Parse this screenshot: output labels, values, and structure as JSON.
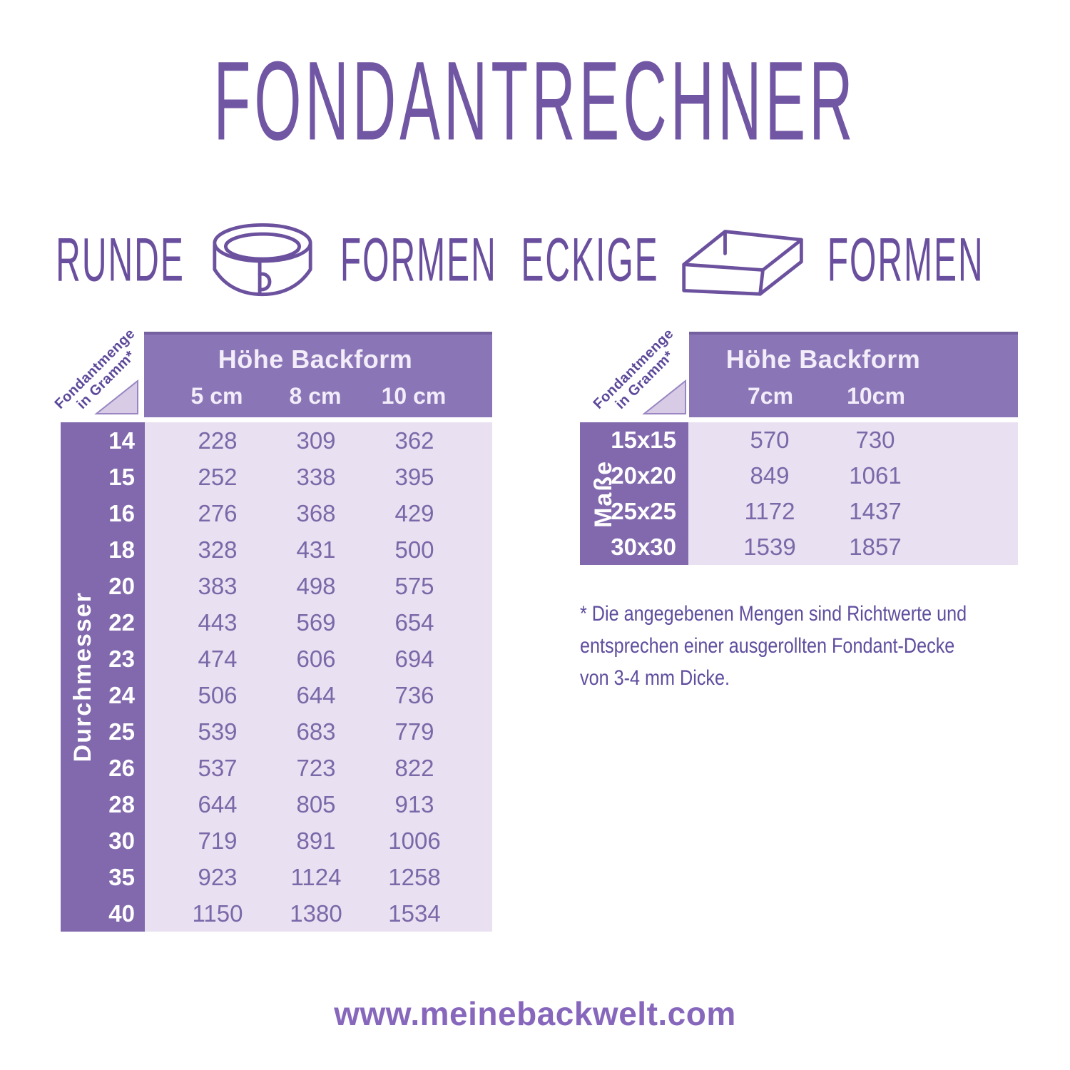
{
  "title": "Fondantrechner",
  "headings": {
    "round": {
      "left": "Runde",
      "right": "Formen",
      "icon": "round-springform-pan-icon"
    },
    "square": {
      "left": "Eckige",
      "right": "Formen",
      "icon": "square-baking-frame-icon"
    }
  },
  "round_table": {
    "corner_label_line1": "Fondantmenge",
    "corner_label_line2": "in Gramm*",
    "header": "Höhe Backform",
    "columns": [
      "5 cm",
      "8 cm",
      "10 cm"
    ],
    "axis_label": "Durchmesser",
    "rows": [
      {
        "label": "14",
        "values": [
          "228",
          "309",
          "362"
        ]
      },
      {
        "label": "15",
        "values": [
          "252",
          "338",
          "395"
        ]
      },
      {
        "label": "16",
        "values": [
          "276",
          "368",
          "429"
        ]
      },
      {
        "label": "18",
        "values": [
          "328",
          "431",
          "500"
        ]
      },
      {
        "label": "20",
        "values": [
          "383",
          "498",
          "575"
        ]
      },
      {
        "label": "22",
        "values": [
          "443",
          "569",
          "654"
        ]
      },
      {
        "label": "23",
        "values": [
          "474",
          "606",
          "694"
        ]
      },
      {
        "label": "24",
        "values": [
          "506",
          "644",
          "736"
        ]
      },
      {
        "label": "25",
        "values": [
          "539",
          "683",
          "779"
        ]
      },
      {
        "label": "26",
        "values": [
          "537",
          "723",
          "822"
        ]
      },
      {
        "label": "28",
        "values": [
          "644",
          "805",
          "913"
        ]
      },
      {
        "label": "30",
        "values": [
          "719",
          "891",
          "1006"
        ]
      },
      {
        "label": "35",
        "values": [
          "923",
          "1124",
          "1258"
        ]
      },
      {
        "label": "40",
        "values": [
          "1150",
          "1380",
          "1534"
        ]
      }
    ]
  },
  "square_table": {
    "corner_label_line1": "Fondantmenge",
    "corner_label_line2": "in Gramm*",
    "header": "Höhe Backform",
    "columns": [
      "7cm",
      "10cm"
    ],
    "axis_label": "Maße",
    "rows": [
      {
        "label": "15x15",
        "values": [
          "570",
          "730"
        ]
      },
      {
        "label": "20x20",
        "values": [
          "849",
          "1061"
        ]
      },
      {
        "label": "25x25",
        "values": [
          "1172",
          "1437"
        ]
      },
      {
        "label": "30x30",
        "values": [
          "1539",
          "1857"
        ]
      }
    ]
  },
  "footnote_lines": [
    "* Die angegebenen Mengen sind Richtwerte und",
    "entsprechen einer ausgerollten Fondant-Decke",
    "von 3-4 mm Dicke."
  ],
  "footer": "www.meinebackwelt.com",
  "colors": {
    "header_purple": "#8a75b7",
    "row_header_purple": "#8269ae",
    "body_lavender": "#e9e0f1",
    "value_text": "#7a68a8",
    "diagonal_label_text": "#5c4899",
    "title_purple": "#7156a4",
    "footnote_purple": "#5f4d9e",
    "footer_purple": "#8767bc",
    "icon_stroke": "#6b519e",
    "corner_triangle_fill": "#d7cbe6"
  },
  "chart_data": [
    {
      "type": "table",
      "title": "Runde Formen",
      "col_header": "Höhe Backform",
      "row_header": "Durchmesser",
      "unit": "Fondantmenge in Gramm",
      "columns": [
        "5 cm",
        "8 cm",
        "10 cm"
      ],
      "rows": [
        "14",
        "15",
        "16",
        "18",
        "20",
        "22",
        "23",
        "24",
        "25",
        "26",
        "28",
        "30",
        "35",
        "40"
      ],
      "values": [
        [
          228,
          309,
          362
        ],
        [
          252,
          338,
          395
        ],
        [
          276,
          368,
          429
        ],
        [
          328,
          431,
          500
        ],
        [
          383,
          498,
          575
        ],
        [
          443,
          569,
          654
        ],
        [
          474,
          606,
          694
        ],
        [
          506,
          644,
          736
        ],
        [
          539,
          683,
          779
        ],
        [
          537,
          723,
          822
        ],
        [
          644,
          805,
          913
        ],
        [
          719,
          891,
          1006
        ],
        [
          923,
          1124,
          1258
        ],
        [
          1150,
          1380,
          1534
        ]
      ]
    },
    {
      "type": "table",
      "title": "Eckige Formen",
      "col_header": "Höhe Backform",
      "row_header": "Maße",
      "unit": "Fondantmenge in Gramm",
      "columns": [
        "7cm",
        "10cm"
      ],
      "rows": [
        "15x15",
        "20x20",
        "25x25",
        "30x30"
      ],
      "values": [
        [
          570,
          730
        ],
        [
          849,
          1061
        ],
        [
          1172,
          1437
        ],
        [
          1539,
          1857
        ]
      ]
    }
  ]
}
